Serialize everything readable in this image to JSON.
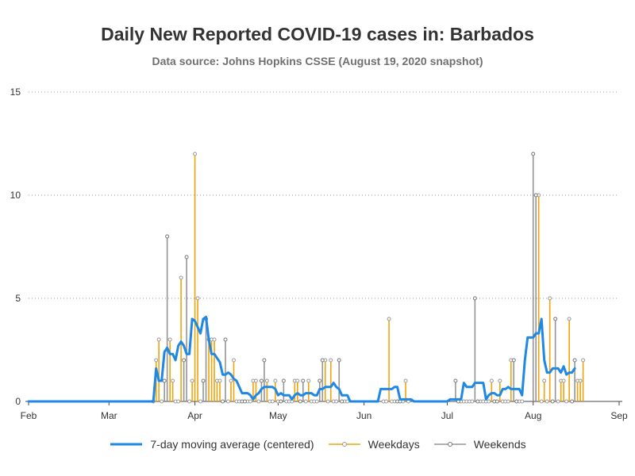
{
  "chart_data": {
    "type": "line",
    "title": "Daily New Reported COVID-19 cases in: Barbados",
    "subtitle": "Data source: Johns Hopkins CSSE (August 19, 2020 snapshot)",
    "xlabel": "",
    "ylabel": "",
    "x_range": [
      "2020-02-01",
      "2020-09-01"
    ],
    "ylim": [
      0,
      15
    ],
    "y_ticks": [
      0,
      5,
      10,
      15
    ],
    "x_ticks": [
      {
        "date": "2020-02-01",
        "label": "Feb"
      },
      {
        "date": "2020-03-01",
        "label": "Mar"
      },
      {
        "date": "2020-04-01",
        "label": "Apr"
      },
      {
        "date": "2020-05-01",
        "label": "May"
      },
      {
        "date": "2020-06-01",
        "label": "Jun"
      },
      {
        "date": "2020-07-01",
        "label": "Jul"
      },
      {
        "date": "2020-08-01",
        "label": "Aug"
      },
      {
        "date": "2020-09-01",
        "label": "Sep"
      }
    ],
    "grid": "horizontal dotted",
    "legend_position": "bottom",
    "colors": {
      "moving_average": "#1f88e5",
      "weekdays": "#f0a30a",
      "weekends": "#959595"
    },
    "series": [
      {
        "name": "7-day moving average (centered)",
        "kind": "line",
        "points": [
          [
            "2020-02-01",
            0
          ],
          [
            "2020-03-17",
            0
          ],
          [
            "2020-03-18",
            1.6
          ],
          [
            "2020-03-19",
            1.0
          ],
          [
            "2020-03-20",
            1.0
          ],
          [
            "2020-03-21",
            2.4
          ],
          [
            "2020-03-22",
            2.6
          ],
          [
            "2020-03-23",
            2.3
          ],
          [
            "2020-03-24",
            2.3
          ],
          [
            "2020-03-25",
            2.0
          ],
          [
            "2020-03-26",
            2.7
          ],
          [
            "2020-03-27",
            2.9
          ],
          [
            "2020-03-28",
            2.7
          ],
          [
            "2020-03-29",
            2.3
          ],
          [
            "2020-03-30",
            2.3
          ],
          [
            "2020-03-31",
            4.0
          ],
          [
            "2020-04-01",
            3.9
          ],
          [
            "2020-04-02",
            3.6
          ],
          [
            "2020-04-03",
            3.3
          ],
          [
            "2020-04-04",
            4.0
          ],
          [
            "2020-04-05",
            4.1
          ],
          [
            "2020-04-06",
            3.0
          ],
          [
            "2020-04-07",
            2.3
          ],
          [
            "2020-04-08",
            2.3
          ],
          [
            "2020-04-09",
            2.1
          ],
          [
            "2020-04-10",
            1.9
          ],
          [
            "2020-04-11",
            1.3
          ],
          [
            "2020-04-12",
            1.3
          ],
          [
            "2020-04-13",
            1.4
          ],
          [
            "2020-04-14",
            1.3
          ],
          [
            "2020-04-15",
            1.1
          ],
          [
            "2020-04-16",
            1.0
          ],
          [
            "2020-04-17",
            0.7
          ],
          [
            "2020-04-18",
            0.4
          ],
          [
            "2020-04-19",
            0.4
          ],
          [
            "2020-04-20",
            0.4
          ],
          [
            "2020-04-21",
            0.3
          ],
          [
            "2020-04-22",
            0.1
          ],
          [
            "2020-04-23",
            0.3
          ],
          [
            "2020-04-24",
            0.4
          ],
          [
            "2020-04-25",
            0.6
          ],
          [
            "2020-04-26",
            0.7
          ],
          [
            "2020-04-27",
            0.7
          ],
          [
            "2020-04-28",
            0.7
          ],
          [
            "2020-04-29",
            0.7
          ],
          [
            "2020-04-30",
            0.6
          ],
          [
            "2020-05-01",
            0.3
          ],
          [
            "2020-05-02",
            0.4
          ],
          [
            "2020-05-03",
            0.3
          ],
          [
            "2020-05-04",
            0.3
          ],
          [
            "2020-05-05",
            0.3
          ],
          [
            "2020-05-06",
            0.1
          ],
          [
            "2020-05-07",
            0.3
          ],
          [
            "2020-05-08",
            0.4
          ],
          [
            "2020-05-09",
            0.3
          ],
          [
            "2020-05-10",
            0.3
          ],
          [
            "2020-05-11",
            0.4
          ],
          [
            "2020-05-12",
            0.4
          ],
          [
            "2020-05-13",
            0.4
          ],
          [
            "2020-05-14",
            0.3
          ],
          [
            "2020-05-15",
            0.3
          ],
          [
            "2020-05-16",
            0.6
          ],
          [
            "2020-05-17",
            0.6
          ],
          [
            "2020-05-18",
            0.7
          ],
          [
            "2020-05-19",
            0.7
          ],
          [
            "2020-05-20",
            0.7
          ],
          [
            "2020-05-21",
            0.9
          ],
          [
            "2020-05-22",
            0.7
          ],
          [
            "2020-05-23",
            0.6
          ],
          [
            "2020-05-24",
            0.3
          ],
          [
            "2020-05-25",
            0.3
          ],
          [
            "2020-05-26",
            0.3
          ],
          [
            "2020-05-27",
            0
          ],
          [
            "2020-06-06",
            0
          ],
          [
            "2020-06-07",
            0.6
          ],
          [
            "2020-06-08",
            0.6
          ],
          [
            "2020-06-09",
            0.6
          ],
          [
            "2020-06-10",
            0.6
          ],
          [
            "2020-06-11",
            0.6
          ],
          [
            "2020-06-12",
            0.7
          ],
          [
            "2020-06-13",
            0.7
          ],
          [
            "2020-06-14",
            0.1
          ],
          [
            "2020-06-15",
            0.1
          ],
          [
            "2020-06-16",
            0.1
          ],
          [
            "2020-06-17",
            0.1
          ],
          [
            "2020-06-18",
            0.1
          ],
          [
            "2020-06-19",
            0
          ],
          [
            "2020-07-01",
            0
          ],
          [
            "2020-07-02",
            0.1
          ],
          [
            "2020-07-03",
            0.1
          ],
          [
            "2020-07-04",
            0.1
          ],
          [
            "2020-07-05",
            0.1
          ],
          [
            "2020-07-06",
            0.1
          ],
          [
            "2020-07-07",
            0.9
          ],
          [
            "2020-07-08",
            0.7
          ],
          [
            "2020-07-09",
            0.7
          ],
          [
            "2020-07-10",
            0.7
          ],
          [
            "2020-07-11",
            0.9
          ],
          [
            "2020-07-12",
            0.9
          ],
          [
            "2020-07-13",
            0.9
          ],
          [
            "2020-07-14",
            0.9
          ],
          [
            "2020-07-15",
            0.1
          ],
          [
            "2020-07-16",
            0.3
          ],
          [
            "2020-07-17",
            0.4
          ],
          [
            "2020-07-18",
            0.4
          ],
          [
            "2020-07-19",
            0.3
          ],
          [
            "2020-07-20",
            0.3
          ],
          [
            "2020-07-21",
            0.6
          ],
          [
            "2020-07-22",
            0.6
          ],
          [
            "2020-07-23",
            0.7
          ],
          [
            "2020-07-24",
            0.6
          ],
          [
            "2020-07-25",
            0.6
          ],
          [
            "2020-07-26",
            0.6
          ],
          [
            "2020-07-27",
            0.6
          ],
          [
            "2020-07-28",
            0.3
          ],
          [
            "2020-07-29",
            2.0
          ],
          [
            "2020-07-30",
            3.1
          ],
          [
            "2020-07-31",
            3.1
          ],
          [
            "2020-08-01",
            3.1
          ],
          [
            "2020-08-02",
            3.3
          ],
          [
            "2020-08-03",
            3.3
          ],
          [
            "2020-08-04",
            4.0
          ],
          [
            "2020-08-05",
            2.0
          ],
          [
            "2020-08-06",
            1.4
          ],
          [
            "2020-08-07",
            1.4
          ],
          [
            "2020-08-08",
            1.6
          ],
          [
            "2020-08-09",
            1.6
          ],
          [
            "2020-08-10",
            1.6
          ],
          [
            "2020-08-11",
            1.4
          ],
          [
            "2020-08-12",
            1.7
          ],
          [
            "2020-08-13",
            1.3
          ],
          [
            "2020-08-14",
            1.4
          ],
          [
            "2020-08-15",
            1.4
          ],
          [
            "2020-08-16",
            1.6
          ]
        ]
      },
      {
        "name": "Weekdays",
        "kind": "stem",
        "points": [
          [
            "2020-03-17",
            0
          ],
          [
            "2020-03-18",
            2
          ],
          [
            "2020-03-19",
            3
          ],
          [
            "2020-03-20",
            0
          ],
          [
            "2020-03-23",
            3
          ],
          [
            "2020-03-24",
            1
          ],
          [
            "2020-03-25",
            0
          ],
          [
            "2020-03-26",
            0
          ],
          [
            "2020-03-27",
            6
          ],
          [
            "2020-03-30",
            0
          ],
          [
            "2020-03-31",
            1
          ],
          [
            "2020-04-01",
            12
          ],
          [
            "2020-04-02",
            5
          ],
          [
            "2020-04-03",
            0
          ],
          [
            "2020-04-06",
            3
          ],
          [
            "2020-04-07",
            3
          ],
          [
            "2020-04-08",
            3
          ],
          [
            "2020-04-09",
            1
          ],
          [
            "2020-04-10",
            1
          ],
          [
            "2020-04-13",
            0
          ],
          [
            "2020-04-14",
            1
          ],
          [
            "2020-04-15",
            2
          ],
          [
            "2020-04-16",
            0
          ],
          [
            "2020-04-17",
            0
          ],
          [
            "2020-04-20",
            0
          ],
          [
            "2020-04-21",
            0
          ],
          [
            "2020-04-22",
            1
          ],
          [
            "2020-04-23",
            1
          ],
          [
            "2020-04-24",
            0
          ],
          [
            "2020-04-27",
            1
          ],
          [
            "2020-04-28",
            0
          ],
          [
            "2020-04-29",
            0
          ],
          [
            "2020-04-30",
            1
          ],
          [
            "2020-05-01",
            0
          ],
          [
            "2020-05-04",
            0
          ],
          [
            "2020-05-05",
            0
          ],
          [
            "2020-05-06",
            0
          ],
          [
            "2020-05-07",
            1
          ],
          [
            "2020-05-08",
            1
          ],
          [
            "2020-05-11",
            0
          ],
          [
            "2020-05-12",
            1
          ],
          [
            "2020-05-13",
            0
          ],
          [
            "2020-05-14",
            0
          ],
          [
            "2020-05-15",
            0
          ],
          [
            "2020-05-18",
            2
          ],
          [
            "2020-05-19",
            0
          ],
          [
            "2020-05-20",
            2
          ],
          [
            "2020-05-21",
            0
          ],
          [
            "2020-05-22",
            0
          ],
          [
            "2020-05-25",
            0
          ],
          [
            "2020-05-26",
            0
          ],
          [
            "2020-06-08",
            0
          ],
          [
            "2020-06-09",
            0
          ],
          [
            "2020-06-10",
            4
          ],
          [
            "2020-06-11",
            0
          ],
          [
            "2020-06-12",
            0
          ],
          [
            "2020-06-15",
            0
          ],
          [
            "2020-06-16",
            1
          ],
          [
            "2020-06-17",
            0
          ],
          [
            "2020-07-06",
            0
          ],
          [
            "2020-07-07",
            0
          ],
          [
            "2020-07-08",
            0
          ],
          [
            "2020-07-09",
            0
          ],
          [
            "2020-07-10",
            0
          ],
          [
            "2020-07-13",
            0
          ],
          [
            "2020-07-14",
            0
          ],
          [
            "2020-07-15",
            0
          ],
          [
            "2020-07-16",
            0
          ],
          [
            "2020-07-17",
            1
          ],
          [
            "2020-07-20",
            1
          ],
          [
            "2020-07-21",
            0
          ],
          [
            "2020-07-22",
            0
          ],
          [
            "2020-07-23",
            0
          ],
          [
            "2020-07-24",
            2
          ],
          [
            "2020-07-27",
            0
          ],
          [
            "2020-07-28",
            0
          ],
          [
            "2020-08-03",
            10
          ],
          [
            "2020-08-04",
            0
          ],
          [
            "2020-08-05",
            1
          ],
          [
            "2020-08-06",
            0
          ],
          [
            "2020-08-07",
            5
          ],
          [
            "2020-08-10",
            0
          ],
          [
            "2020-08-11",
            1
          ],
          [
            "2020-08-12",
            1
          ],
          [
            "2020-08-13",
            0
          ],
          [
            "2020-08-14",
            4
          ],
          [
            "2020-08-17",
            1
          ],
          [
            "2020-08-18",
            1
          ],
          [
            "2020-08-19",
            2
          ]
        ]
      },
      {
        "name": "Weekends",
        "kind": "stem",
        "points": [
          [
            "2020-03-21",
            1
          ],
          [
            "2020-03-22",
            8
          ],
          [
            "2020-03-28",
            2
          ],
          [
            "2020-03-29",
            7
          ],
          [
            "2020-04-04",
            1
          ],
          [
            "2020-04-05",
            4
          ],
          [
            "2020-04-11",
            0
          ],
          [
            "2020-04-12",
            3
          ],
          [
            "2020-04-18",
            0
          ],
          [
            "2020-04-19",
            0
          ],
          [
            "2020-04-25",
            1
          ],
          [
            "2020-04-26",
            2
          ],
          [
            "2020-05-02",
            0
          ],
          [
            "2020-05-03",
            1
          ],
          [
            "2020-05-09",
            0
          ],
          [
            "2020-05-10",
            1
          ],
          [
            "2020-05-16",
            1
          ],
          [
            "2020-05-17",
            2
          ],
          [
            "2020-05-23",
            2
          ],
          [
            "2020-05-24",
            0
          ],
          [
            "2020-06-13",
            0
          ],
          [
            "2020-06-14",
            0
          ],
          [
            "2020-07-04",
            1
          ],
          [
            "2020-07-05",
            0
          ],
          [
            "2020-07-11",
            5
          ],
          [
            "2020-07-12",
            0
          ],
          [
            "2020-07-18",
            0
          ],
          [
            "2020-07-19",
            0
          ],
          [
            "2020-07-25",
            2
          ],
          [
            "2020-07-26",
            0
          ],
          [
            "2020-08-01",
            12
          ],
          [
            "2020-08-02",
            10
          ],
          [
            "2020-08-08",
            0
          ],
          [
            "2020-08-09",
            4
          ],
          [
            "2020-08-15",
            0
          ],
          [
            "2020-08-16",
            2
          ]
        ]
      }
    ]
  }
}
